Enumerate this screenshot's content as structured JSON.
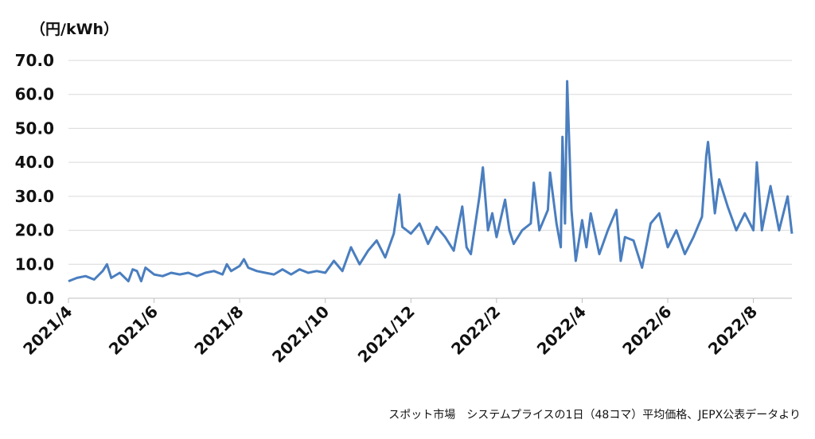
{
  "chart_data": {
    "type": "line",
    "y_label": "（円/kWh）",
    "note": "スポット市場　システムプライスの1日（48コマ）平均価格、JEPX公表データより",
    "xlim": [
      0,
      16.9
    ],
    "xticks": [
      {
        "value": 0,
        "label": "2021/4"
      },
      {
        "value": 2,
        "label": "2021/6"
      },
      {
        "value": 4,
        "label": "2021/8"
      },
      {
        "value": 6,
        "label": "2021/10"
      },
      {
        "value": 8,
        "label": "2021/12"
      },
      {
        "value": 10,
        "label": "2022/2"
      },
      {
        "value": 12,
        "label": "2022/4"
      },
      {
        "value": 14,
        "label": "2022/6"
      },
      {
        "value": 16,
        "label": "2022/8"
      }
    ],
    "ylim": [
      0,
      70
    ],
    "yticks": [
      {
        "value": 0,
        "label": "0.0"
      },
      {
        "value": 10,
        "label": "10.0"
      },
      {
        "value": 20,
        "label": "20.0"
      },
      {
        "value": 30,
        "label": "30.0"
      },
      {
        "value": 40,
        "label": "40.0"
      },
      {
        "value": 50,
        "label": "50.0"
      },
      {
        "value": 60,
        "label": "60.0"
      },
      {
        "value": 70,
        "label": "70.0"
      }
    ],
    "grid": true,
    "color": "#4a7ebf",
    "x": [
      0,
      0.2,
      0.4,
      0.6,
      0.8,
      0.9,
      1.0,
      1.2,
      1.4,
      1.5,
      1.6,
      1.7,
      1.8,
      2.0,
      2.2,
      2.4,
      2.6,
      2.8,
      3.0,
      3.2,
      3.4,
      3.6,
      3.7,
      3.8,
      4.0,
      4.1,
      4.2,
      4.4,
      4.6,
      4.8,
      5.0,
      5.2,
      5.4,
      5.6,
      5.8,
      6.0,
      6.2,
      6.4,
      6.6,
      6.8,
      7.0,
      7.2,
      7.4,
      7.6,
      7.73,
      7.8,
      8.0,
      8.2,
      8.4,
      8.6,
      8.8,
      9.0,
      9.2,
      9.3,
      9.4,
      9.6,
      9.68,
      9.8,
      9.9,
      10.0,
      10.2,
      10.3,
      10.4,
      10.6,
      10.8,
      10.87,
      11.0,
      11.2,
      11.25,
      11.4,
      11.5,
      11.54,
      11.6,
      11.65,
      11.75,
      11.85,
      12.0,
      12.1,
      12.2,
      12.4,
      12.6,
      12.8,
      12.9,
      13.0,
      13.2,
      13.4,
      13.6,
      13.8,
      14.0,
      14.2,
      14.4,
      14.6,
      14.8,
      14.9,
      14.94,
      15.1,
      15.2,
      15.4,
      15.6,
      15.8,
      16.0,
      16.08,
      16.2,
      16.4,
      16.6,
      16.8,
      16.9
    ],
    "values": [
      5,
      6,
      6.5,
      5.5,
      8,
      10,
      6,
      7.5,
      5,
      8.5,
      8,
      5,
      9,
      7,
      6.5,
      7.5,
      7,
      7.5,
      6.5,
      7.5,
      8,
      7,
      10,
      8,
      9.5,
      11.5,
      9,
      8,
      7.5,
      7,
      8.5,
      7,
      8.5,
      7.5,
      8,
      7.5,
      11,
      8,
      15,
      10,
      14,
      17,
      12,
      19,
      30.5,
      21,
      19,
      22,
      16,
      21,
      18,
      14,
      27,
      15,
      13,
      30,
      38.5,
      20,
      25,
      18,
      29,
      20,
      16,
      20,
      22,
      34,
      20,
      26,
      37,
      22,
      15,
      47.5,
      22,
      63.9,
      26,
      11,
      23,
      15,
      25,
      13,
      20,
      26,
      11,
      18,
      17,
      9,
      22,
      25,
      15,
      20,
      13,
      18,
      24,
      42,
      46,
      25,
      35,
      27,
      20,
      25,
      20,
      40,
      20,
      33,
      20,
      30,
      19
    ]
  }
}
